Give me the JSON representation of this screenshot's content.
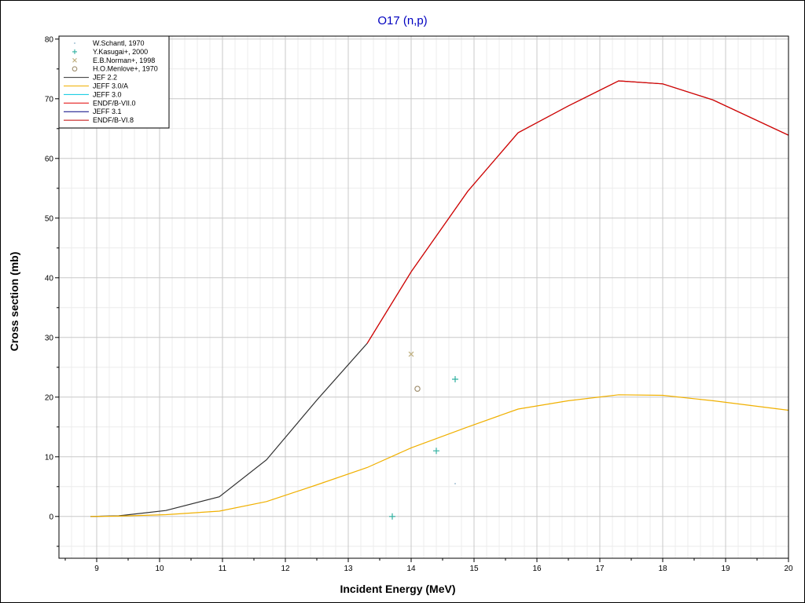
{
  "chart_data": {
    "type": "line",
    "title": "O17 (n,p)",
    "xlabel": "Incident Energy (MeV)",
    "ylabel": "Cross section (mb)",
    "xlim": [
      8.4,
      20
    ],
    "ylim": [
      -7,
      80.5
    ],
    "xticks": [
      9,
      10,
      11,
      12,
      13,
      14,
      15,
      16,
      17,
      18,
      19,
      20
    ],
    "yticks": [
      0,
      10,
      20,
      30,
      40,
      50,
      60,
      70,
      80
    ],
    "grid": true,
    "legend_position": "top-left",
    "series": [
      {
        "name": "W.Schantl, 1970",
        "kind": "scatter",
        "marker": "dot",
        "color": "#88b0c8",
        "points": [
          [
            14.7,
            5.5
          ]
        ]
      },
      {
        "name": "Y.Kasugai+, 2000",
        "kind": "scatter",
        "marker": "plus",
        "color": "#30b0a0",
        "points": [
          [
            13.7,
            0
          ],
          [
            14.4,
            11
          ],
          [
            14.7,
            23
          ]
        ]
      },
      {
        "name": "E.B.Norman+, 1998",
        "kind": "scatter",
        "marker": "cross",
        "color": "#c0b080",
        "points": [
          [
            14.0,
            27.2
          ]
        ]
      },
      {
        "name": "H.O.Menlove+, 1970",
        "kind": "scatter",
        "marker": "circle",
        "color": "#a09070",
        "points": [
          [
            14.1,
            21.4
          ]
        ]
      },
      {
        "name": "JEF 2.2",
        "kind": "line",
        "color": "#303030",
        "points": [
          [
            8.9,
            0
          ],
          [
            9.35,
            0.1
          ],
          [
            10.1,
            1.0
          ],
          [
            10.95,
            3.3
          ],
          [
            11.7,
            9.5
          ],
          [
            12.5,
            19.5
          ],
          [
            13.3,
            29
          ],
          [
            14.0,
            41
          ],
          [
            14.9,
            54.5
          ],
          [
            15.7,
            64.3
          ],
          [
            16.5,
            68.8
          ],
          [
            17.3,
            73
          ],
          [
            18.0,
            72.5
          ],
          [
            18.8,
            69.8
          ],
          [
            20.0,
            63.9
          ]
        ]
      },
      {
        "name": "JEFF 3.0/A",
        "kind": "line",
        "color": "#f0b000",
        "points": [
          [
            8.9,
            0
          ],
          [
            9.35,
            0.05
          ],
          [
            10.1,
            0.3
          ],
          [
            10.95,
            0.9
          ],
          [
            11.7,
            2.5
          ],
          [
            12.5,
            5.3
          ],
          [
            13.3,
            8.2
          ],
          [
            14.0,
            11.5
          ],
          [
            14.9,
            15.0
          ],
          [
            15.7,
            18.0
          ],
          [
            16.5,
            19.4
          ],
          [
            17.3,
            20.4
          ],
          [
            18.0,
            20.3
          ],
          [
            18.8,
            19.4
          ],
          [
            20.0,
            17.8
          ]
        ]
      },
      {
        "name": "JEFF 3.0",
        "kind": "line",
        "color": "#00c8e0",
        "points": []
      },
      {
        "name": "ENDF/B-VII.0",
        "kind": "line",
        "color": "#e00000",
        "points": [
          [
            13.3,
            29
          ],
          [
            14.0,
            41
          ],
          [
            14.9,
            54.5
          ],
          [
            15.7,
            64.3
          ],
          [
            16.5,
            68.8
          ],
          [
            17.3,
            73
          ],
          [
            18.0,
            72.5
          ],
          [
            18.8,
            69.8
          ],
          [
            20.0,
            63.9
          ]
        ]
      },
      {
        "name": "JEFF 3.1",
        "kind": "line",
        "color": "#000080",
        "points": []
      },
      {
        "name": "ENDF/B-VI.8",
        "kind": "line",
        "color": "#c00000",
        "points": []
      }
    ]
  }
}
